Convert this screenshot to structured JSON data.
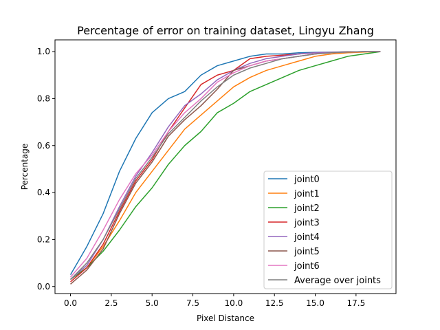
{
  "chart_data": {
    "type": "line",
    "title": "Percentage of error on training dataset, Lingyu Zhang",
    "xlabel": "Pixel Distance",
    "ylabel": "Percentage",
    "xlim": [
      -0.95,
      19.95
    ],
    "ylim": [
      -0.03,
      1.05
    ],
    "xticks": [
      0.0,
      2.5,
      5.0,
      7.5,
      10.0,
      12.5,
      15.0,
      17.5
    ],
    "xtick_labels": [
      "0.0",
      "2.5",
      "5.0",
      "7.5",
      "10.0",
      "12.5",
      "15.0",
      "17.5"
    ],
    "yticks": [
      0.0,
      0.2,
      0.4,
      0.6,
      0.8,
      1.0
    ],
    "ytick_labels": [
      "0.0",
      "0.2",
      "0.4",
      "0.6",
      "0.8",
      "1.0"
    ],
    "grid": false,
    "legend_position": "lower-right",
    "x": [
      0,
      1,
      2,
      3,
      4,
      5,
      6,
      7,
      8,
      9,
      10,
      11,
      12,
      13,
      14,
      15,
      16,
      17,
      18,
      19
    ],
    "series": [
      {
        "name": "joint0",
        "color": "#1f77b4",
        "values": [
          0.05,
          0.17,
          0.31,
          0.49,
          0.63,
          0.74,
          0.8,
          0.83,
          0.9,
          0.94,
          0.96,
          0.98,
          0.99,
          0.99,
          0.995,
          0.997,
          0.998,
          0.999,
          1.0,
          1.0
        ]
      },
      {
        "name": "joint1",
        "color": "#ff7f0e",
        "values": [
          0.03,
          0.08,
          0.17,
          0.28,
          0.4,
          0.49,
          0.58,
          0.67,
          0.73,
          0.79,
          0.85,
          0.89,
          0.92,
          0.94,
          0.96,
          0.98,
          0.99,
          0.995,
          0.998,
          1.0
        ]
      },
      {
        "name": "joint2",
        "color": "#2ca02c",
        "values": [
          0.03,
          0.08,
          0.15,
          0.24,
          0.34,
          0.42,
          0.52,
          0.6,
          0.66,
          0.74,
          0.78,
          0.83,
          0.86,
          0.89,
          0.92,
          0.94,
          0.96,
          0.98,
          0.99,
          1.0
        ]
      },
      {
        "name": "joint3",
        "color": "#d62728",
        "values": [
          0.02,
          0.08,
          0.18,
          0.32,
          0.45,
          0.54,
          0.66,
          0.76,
          0.86,
          0.9,
          0.92,
          0.97,
          0.98,
          0.985,
          0.99,
          0.995,
          0.997,
          0.999,
          1.0,
          1.0
        ]
      },
      {
        "name": "joint4",
        "color": "#9467bd",
        "values": [
          0.03,
          0.09,
          0.2,
          0.34,
          0.47,
          0.57,
          0.68,
          0.77,
          0.82,
          0.88,
          0.92,
          0.95,
          0.97,
          0.98,
          0.99,
          0.995,
          0.997,
          0.999,
          1.0,
          1.0
        ]
      },
      {
        "name": "joint5",
        "color": "#8c564b",
        "values": [
          0.01,
          0.07,
          0.16,
          0.31,
          0.44,
          0.53,
          0.64,
          0.71,
          0.77,
          0.84,
          0.92,
          0.94,
          0.96,
          0.97,
          0.98,
          0.99,
          0.995,
          0.999,
          1.0,
          1.0
        ]
      },
      {
        "name": "joint6",
        "color": "#e377c2",
        "values": [
          0.04,
          0.12,
          0.24,
          0.37,
          0.48,
          0.56,
          0.66,
          0.74,
          0.8,
          0.87,
          0.91,
          0.94,
          0.96,
          0.97,
          0.98,
          0.99,
          0.995,
          0.998,
          1.0,
          1.0
        ]
      },
      {
        "name": "Average over joints",
        "color": "#7f7f7f",
        "values": [
          0.03,
          0.1,
          0.2,
          0.33,
          0.46,
          0.55,
          0.65,
          0.72,
          0.79,
          0.85,
          0.9,
          0.93,
          0.95,
          0.97,
          0.98,
          0.99,
          0.995,
          0.998,
          1.0,
          1.0
        ]
      }
    ]
  }
}
